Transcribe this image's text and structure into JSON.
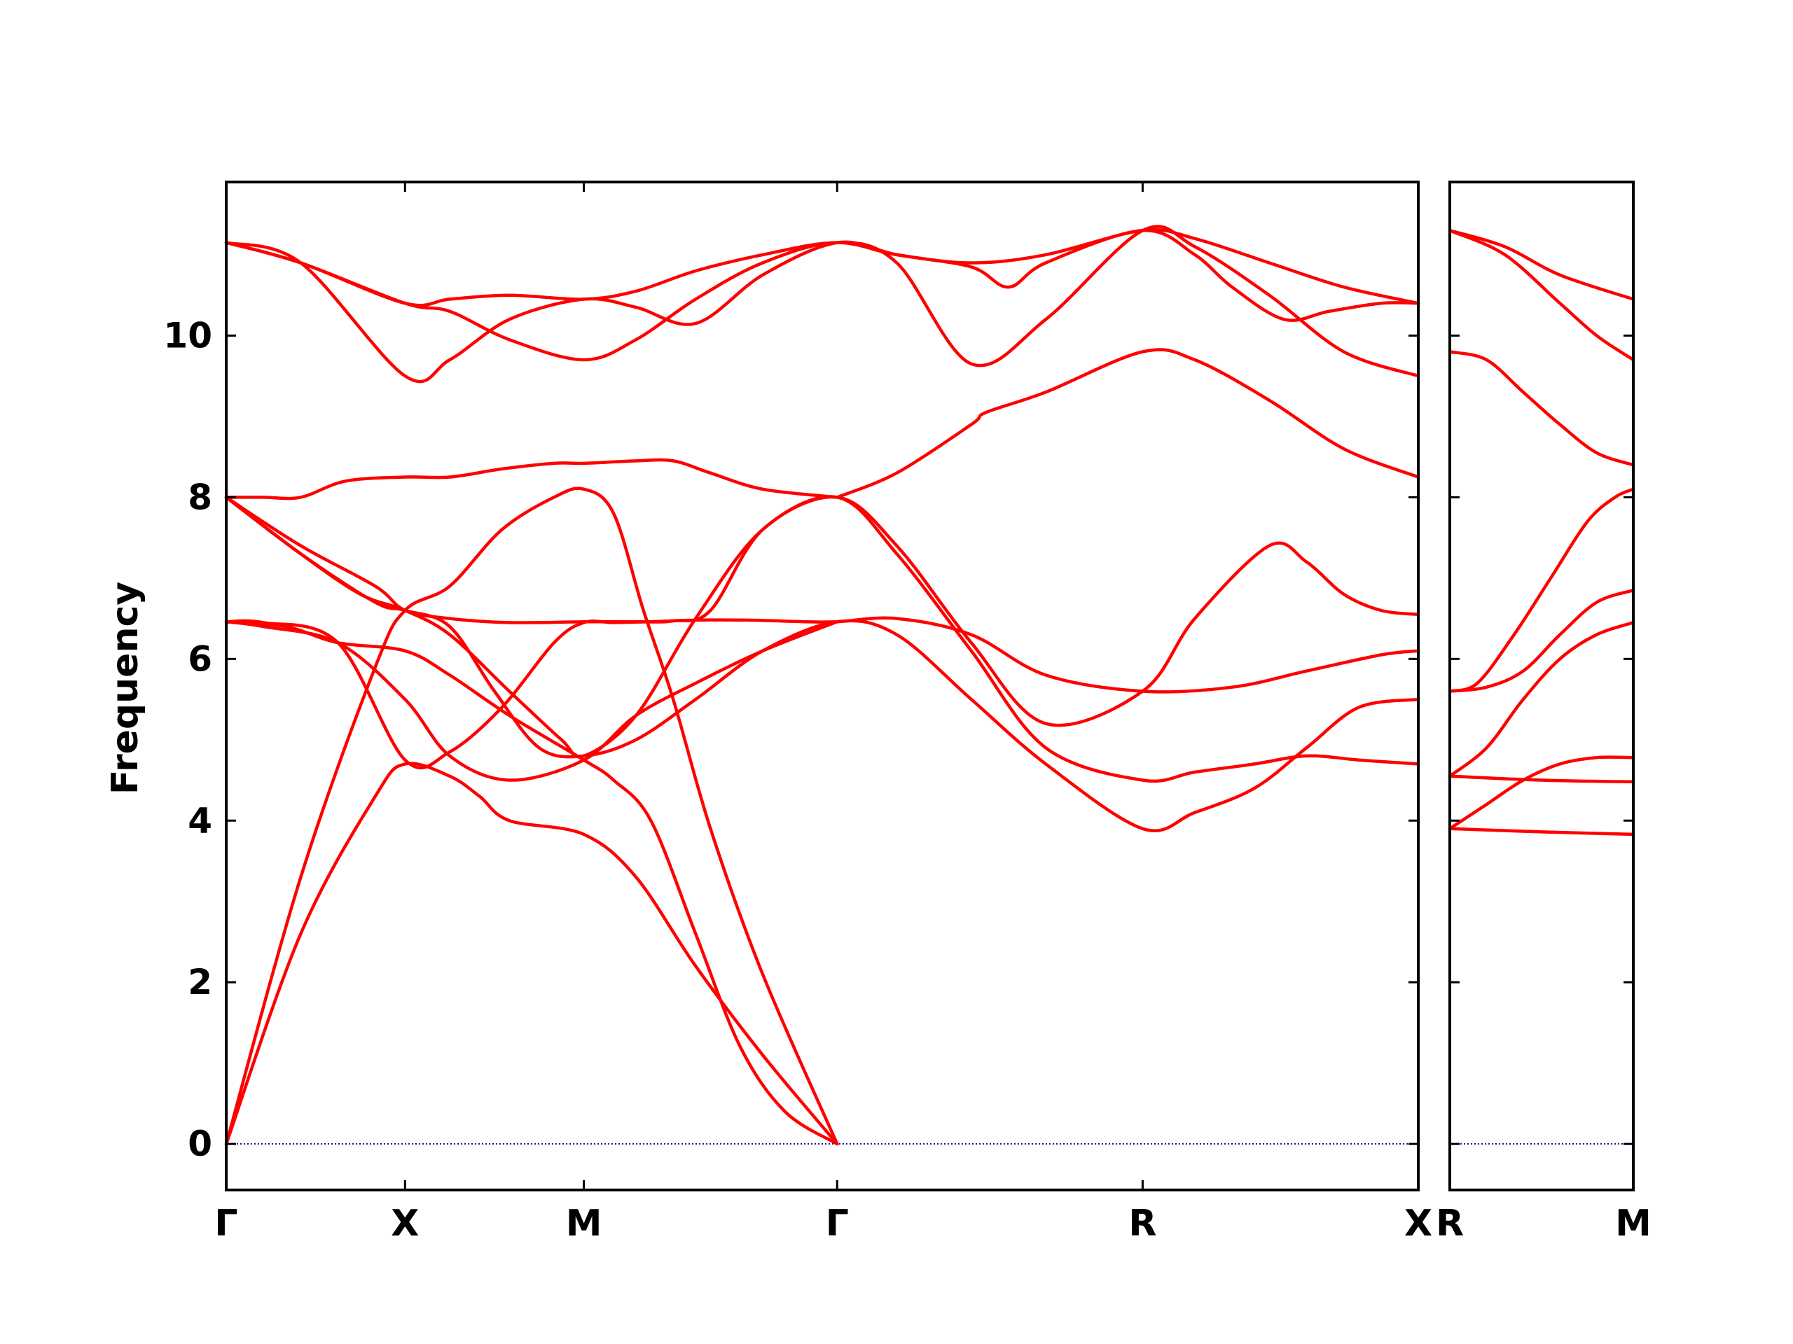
{
  "chart_data": {
    "type": "line",
    "ylabel": "Frequency",
    "ylim": [
      -0.57,
      11.9
    ],
    "yticks": [
      0,
      2,
      4,
      6,
      8,
      10
    ],
    "grid": false,
    "colors": {
      "bands": "#ff0000",
      "zero_line": "#00008b",
      "axes": "#000000"
    },
    "panels": [
      {
        "xlim": [
          0,
          1.6
        ],
        "tick_positions": [
          0,
          0.24,
          0.48,
          0.82,
          1.23,
          1.6
        ],
        "tick_labels": [
          "Γ",
          "X",
          "M",
          "Γ",
          "R",
          "X"
        ],
        "series": [
          {
            "x": [
              0,
              0.1,
              0.2,
              0.24,
              0.3,
              0.34,
              0.38,
              0.48,
              0.55,
              0.63,
              0.72,
              0.82
            ],
            "y": [
              0,
              2.6,
              4.3,
              4.7,
              4.55,
              4.3,
              4.0,
              3.83,
              3.3,
              2.2,
              1.1,
              0
            ]
          },
          {
            "x": [
              0,
              0.1,
              0.2,
              0.24,
              0.3,
              0.37,
              0.44,
              0.48,
              0.52,
              0.56,
              0.6,
              0.65,
              0.72,
              0.82
            ],
            "y": [
              0,
              3.3,
              5.9,
              6.6,
              6.9,
              7.6,
              8.0,
              8.1,
              7.8,
              6.6,
              5.5,
              3.9,
              2.1,
              0
            ]
          },
          {
            "x": [
              0,
              0.05,
              0.15,
              0.24,
              0.3,
              0.38,
              0.48,
              0.55,
              0.63,
              0.72,
              0.82
            ],
            "y": [
              6.46,
              6.4,
              6.2,
              5.5,
              4.8,
              4.5,
              4.75,
              5.3,
              5.7,
              6.1,
              6.46
            ]
          },
          {
            "x": [
              0,
              0.08,
              0.15,
              0.24,
              0.3,
              0.38,
              0.48,
              0.52,
              0.57,
              0.63,
              0.69,
              0.75,
              0.82
            ],
            "y": [
              6.46,
              6.4,
              6.2,
              6.1,
              5.8,
              5.3,
              4.75,
              4.5,
              4.0,
              2.6,
              1.2,
              0.4,
              0
            ]
          },
          {
            "x": [
              0,
              0.05,
              0.15,
              0.24,
              0.3,
              0.37,
              0.44,
              0.48,
              0.52,
              0.57,
              0.63,
              0.7,
              0.78,
              0.82,
              0.9,
              1.0,
              1.1,
              1.23,
              1.35,
              1.45,
              1.55,
              1.6
            ],
            "y": [
              6.46,
              6.45,
              6.2,
              4.75,
              4.85,
              5.4,
              6.2,
              6.45,
              6.45,
              6.46,
              6.48,
              6.48,
              6.46,
              6.46,
              6.5,
              6.3,
              5.8,
              5.6,
              5.65,
              5.85,
              6.05,
              6.1
            ]
          },
          {
            "x": [
              0,
              0.1,
              0.2,
              0.24,
              0.3,
              0.36,
              0.42,
              0.48,
              0.55,
              0.63,
              0.72,
              0.82,
              0.9,
              1.0,
              1.1,
              1.23,
              1.3,
              1.38,
              1.45,
              1.52,
              1.6
            ],
            "y": [
              8.0,
              7.3,
              6.7,
              6.6,
              6.4,
              5.6,
              4.9,
              4.8,
              5.0,
              5.5,
              6.1,
              6.46,
              6.3,
              5.5,
              4.7,
              3.9,
              4.1,
              4.4,
              4.9,
              5.4,
              5.5
            ]
          },
          {
            "x": [
              0,
              0.05,
              0.1,
              0.16,
              0.24,
              0.3,
              0.37,
              0.44,
              0.48,
              0.55,
              0.6,
              0.65,
              0.72,
              0.82
            ],
            "y": [
              8.0,
              8.0,
              8.0,
              8.2,
              8.25,
              8.25,
              8.35,
              8.42,
              8.42,
              8.45,
              8.45,
              8.3,
              8.1,
              8.0
            ]
          },
          {
            "x": [
              0,
              0.1,
              0.18,
              0.24,
              0.3,
              0.38,
              0.45,
              0.48,
              0.55,
              0.63,
              0.72,
              0.82,
              0.9,
              1.0,
              1.1,
              1.23,
              1.3,
              1.38,
              1.45,
              1.52,
              1.6
            ],
            "y": [
              8.0,
              7.3,
              6.8,
              6.6,
              6.3,
              5.6,
              5.0,
              4.8,
              5.3,
              6.5,
              7.6,
              8.0,
              7.3,
              6.1,
              4.9,
              4.5,
              4.6,
              4.7,
              4.8,
              4.75,
              4.7
            ]
          },
          {
            "x": [
              0,
              0.1,
              0.2,
              0.24,
              0.3,
              0.38,
              0.48,
              0.55,
              0.6,
              0.65,
              0.72,
              0.82,
              0.9,
              1.0,
              1.1,
              1.23,
              1.3,
              1.4,
              1.45,
              1.5,
              1.55,
              1.6
            ],
            "y": [
              8.0,
              7.4,
              6.9,
              6.6,
              6.5,
              6.45,
              6.46,
              6.46,
              6.47,
              6.6,
              7.6,
              8.0,
              7.4,
              6.2,
              5.2,
              5.6,
              6.5,
              7.4,
              7.2,
              6.8,
              6.6,
              6.55
            ]
          },
          {
            "x": [
              0,
              0.1,
              0.24,
              0.3,
              0.38,
              0.48,
              0.55,
              0.63,
              0.72,
              0.82,
              0.9,
              1.0,
              1.05,
              1.1,
              1.23,
              1.3,
              1.35,
              1.42,
              1.48,
              1.55,
              1.6
            ],
            "y": [
              11.15,
              10.9,
              9.5,
              9.7,
              10.2,
              10.45,
              10.35,
              10.15,
              10.75,
              11.15,
              11.0,
              10.85,
              10.6,
              10.9,
              11.3,
              11.0,
              10.6,
              10.2,
              10.3,
              10.4,
              10.4
            ]
          },
          {
            "x": [
              0,
              0.1,
              0.24,
              0.3,
              0.38,
              0.48,
              0.55,
              0.63,
              0.72,
              0.82,
              0.9,
              1.0,
              1.1,
              1.23,
              1.3,
              1.4,
              1.5,
              1.6
            ],
            "y": [
              11.15,
              10.9,
              10.4,
              10.3,
              9.95,
              9.7,
              9.95,
              10.45,
              10.9,
              11.15,
              10.9,
              9.65,
              10.2,
              11.3,
              11.1,
              10.5,
              9.8,
              9.5
            ]
          },
          {
            "x": [
              0,
              0.1,
              0.24,
              0.3,
              0.38,
              0.48,
              0.55,
              0.63,
              0.72,
              0.82,
              0.9,
              1.0,
              1.1,
              1.23,
              1.3,
              1.4,
              1.5,
              1.6
            ],
            "y": [
              11.15,
              10.9,
              10.4,
              10.45,
              10.5,
              10.45,
              10.55,
              10.8,
              11.0,
              11.15,
              11.0,
              10.9,
              11.0,
              11.3,
              11.2,
              10.9,
              10.6,
              10.4
            ]
          },
          {
            "x": [
              0.82,
              0.9,
              1.0,
              1.02,
              1.1,
              1.23,
              1.3,
              1.4,
              1.5,
              1.6
            ],
            "y": [
              8.0,
              8.3,
              8.9,
              9.05,
              9.3,
              9.8,
              9.7,
              9.2,
              8.6,
              8.25
            ]
          }
        ]
      },
      {
        "xlim": [
          0,
          1
        ],
        "tick_positions": [
          0,
          1
        ],
        "tick_labels": [
          "R",
          "M"
        ],
        "series": [
          {
            "x": [
              0,
              0.3,
              0.6,
              1.0
            ],
            "y": [
              11.3,
              11.1,
              10.75,
              10.45
            ]
          },
          {
            "x": [
              0,
              0.3,
              0.6,
              0.8,
              1.0
            ],
            "y": [
              11.3,
              11.0,
              10.4,
              10.0,
              9.7
            ]
          },
          {
            "x": [
              0,
              0.2,
              0.4,
              0.6,
              0.8,
              1.0
            ],
            "y": [
              9.8,
              9.7,
              9.3,
              8.9,
              8.55,
              8.4
            ]
          },
          {
            "x": [
              0,
              0.15,
              0.35,
              0.55,
              0.75,
              0.9,
              1.0
            ],
            "y": [
              5.6,
              5.7,
              6.3,
              7.0,
              7.7,
              8.0,
              8.1
            ]
          },
          {
            "x": [
              0,
              0.2,
              0.4,
              0.6,
              0.8,
              1.0
            ],
            "y": [
              5.6,
              5.65,
              5.85,
              6.3,
              6.7,
              6.85
            ]
          },
          {
            "x": [
              0,
              0.2,
              0.4,
              0.6,
              0.8,
              1.0
            ],
            "y": [
              4.55,
              4.9,
              5.5,
              6.0,
              6.3,
              6.45
            ]
          },
          {
            "x": [
              0,
              0.2,
              0.4,
              0.6,
              0.8,
              1.0
            ],
            "y": [
              3.9,
              4.2,
              4.5,
              4.7,
              4.78,
              4.78
            ]
          },
          {
            "x": [
              0,
              0.5,
              1.0
            ],
            "y": [
              4.55,
              4.5,
              4.48
            ]
          },
          {
            "x": [
              0,
              0.5,
              1.0
            ],
            "y": [
              3.9,
              3.86,
              3.83
            ]
          }
        ]
      }
    ]
  }
}
